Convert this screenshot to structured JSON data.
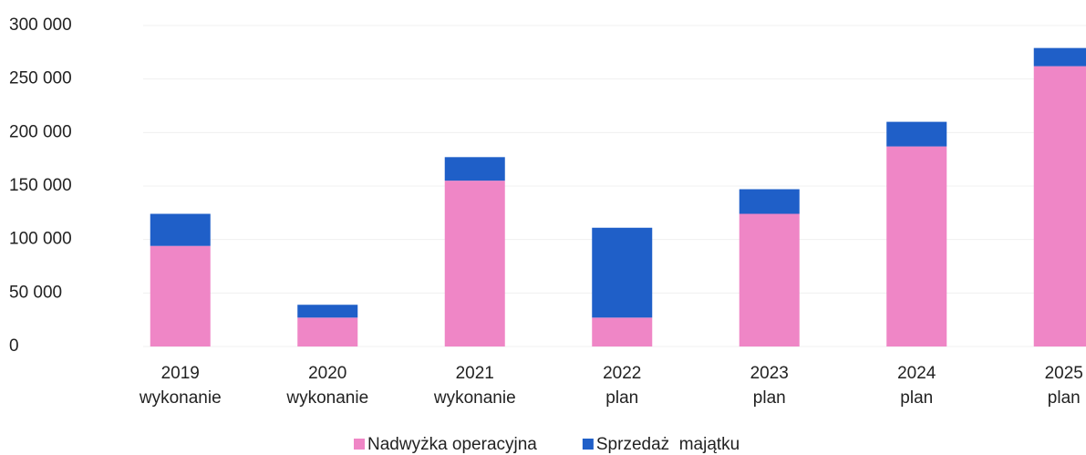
{
  "chart_data": {
    "type": "stacked_bar",
    "categories": [
      [
        "2019",
        "wykonanie"
      ],
      [
        "2020",
        "wykonanie"
      ],
      [
        "2021",
        "wykonanie"
      ],
      [
        "2022",
        "plan"
      ],
      [
        "2023",
        "plan"
      ],
      [
        "2024",
        "plan"
      ],
      [
        "2025",
        "plan"
      ]
    ],
    "series": [
      {
        "name": "Nadwyżka operacyjna",
        "color": "#ef86c6",
        "values": [
          94000,
          27000,
          155000,
          27000,
          124000,
          187000,
          262000
        ]
      },
      {
        "name": "Sprzedaż  majątku",
        "color": "#1f5fc8",
        "values": [
          30000,
          12000,
          22000,
          84000,
          23000,
          23000,
          17000
        ]
      }
    ],
    "ylim": [
      0,
      300000
    ],
    "yticks": [
      0,
      {
        "value": 50000,
        "label": "50 000"
      },
      {
        "value": 100000,
        "label": "100 000"
      },
      {
        "value": 150000,
        "label": "150 000"
      },
      {
        "value": 200000,
        "label": "200 000"
      },
      {
        "value": 250000,
        "label": "250 000"
      },
      {
        "value": 300000,
        "label": "300 000"
      }
    ],
    "grid": true,
    "legend": "bottom"
  }
}
